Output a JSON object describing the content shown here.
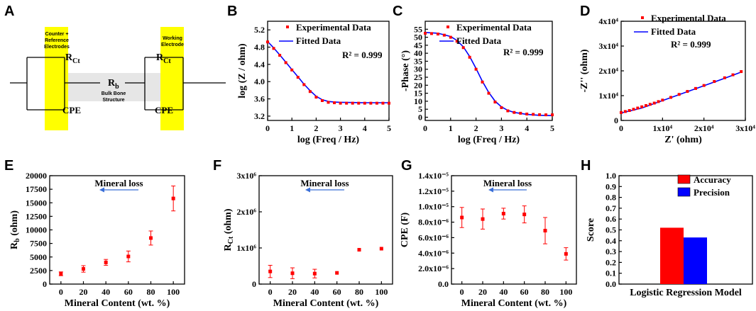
{
  "panel_letters": {
    "a": "A",
    "b": "B",
    "c": "C",
    "d": "D",
    "e": "E",
    "f": "F",
    "g": "G",
    "h": "H"
  },
  "circuit": {
    "counter_label": [
      "Counter +",
      "Reference",
      "Electrodes"
    ],
    "working_label": [
      "Working",
      "Electrode"
    ],
    "rct_left": "R",
    "rct_left_sub": "Ct",
    "rct_right": "R",
    "rct_right_sub": "Ct",
    "rb": "R",
    "rb_sub": "b",
    "bulk_label": [
      "Bulk Bone",
      "Structure"
    ],
    "cpe_left": "CPE",
    "cpe_right": "CPE",
    "electrode_color": "#ffff00",
    "bulk_color": "#e6e6e6"
  },
  "colors": {
    "experimental": "#ff0000",
    "fitted": "#0000ff",
    "accuracy": "#ff0000",
    "precision": "#0000ff",
    "arrow": "#3a6fd8"
  },
  "chart_data": [
    {
      "id": "B",
      "type": "line",
      "xlabel": "log (Freq / Hz)",
      "ylabel": "log (Z / ohm)",
      "xlim": [
        0,
        5
      ],
      "ylim": [
        3.1,
        5.4
      ],
      "xticks": [
        0,
        1,
        2,
        3,
        4,
        5
      ],
      "xtick_labels": [
        "0",
        "1",
        "2",
        "3",
        "4",
        "5"
      ],
      "yticks": [
        3.2,
        3.6,
        4.0,
        4.4,
        4.8,
        5.2
      ],
      "ytick_labels": [
        "3.2",
        "3.6",
        "4.0",
        "4.4",
        "4.8",
        "5.2"
      ],
      "legend": [
        "Experimental Data",
        "Fitted Data"
      ],
      "note": "R² = 0.999",
      "series": [
        {
          "name": "Fitted Data",
          "style": "line",
          "x": [
            0,
            0.25,
            0.5,
            0.75,
            1,
            1.25,
            1.5,
            1.75,
            2,
            2.25,
            2.5,
            2.75,
            3,
            3.5,
            4,
            4.5,
            5
          ],
          "y": [
            4.93,
            4.78,
            4.62,
            4.45,
            4.28,
            4.11,
            3.94,
            3.79,
            3.66,
            3.58,
            3.54,
            3.525,
            3.52,
            3.515,
            3.51,
            3.51,
            3.51
          ]
        },
        {
          "name": "Experimental Data",
          "style": "markers",
          "x": [
            0,
            0.25,
            0.5,
            0.75,
            1,
            1.25,
            1.5,
            1.75,
            2,
            2.25,
            2.5,
            2.75,
            3,
            3.25,
            3.5,
            3.75,
            4,
            4.25,
            4.5,
            4.75,
            5
          ],
          "y": [
            4.92,
            4.77,
            4.61,
            4.44,
            4.27,
            4.1,
            3.93,
            3.77,
            3.64,
            3.56,
            3.52,
            3.51,
            3.5,
            3.5,
            3.5,
            3.5,
            3.5,
            3.5,
            3.5,
            3.5,
            3.5
          ]
        }
      ]
    },
    {
      "id": "C",
      "type": "line",
      "xlabel": "log (Freq / Hz)",
      "ylabel": "-Phase (°)",
      "xlim": [
        0,
        5
      ],
      "ylim": [
        -2,
        60
      ],
      "xticks": [
        0,
        1,
        2,
        3,
        4,
        5
      ],
      "xtick_labels": [
        "0",
        "1",
        "2",
        "3",
        "4",
        "5"
      ],
      "yticks": [
        0,
        5,
        10,
        15,
        20,
        25,
        30,
        35,
        40,
        45,
        50,
        55
      ],
      "ytick_labels": [
        "0",
        "5",
        "10",
        "15",
        "20",
        "25",
        "30",
        "35",
        "40",
        "45",
        "50",
        "55"
      ],
      "legend": [
        "Experimental Data",
        "Fitted Data"
      ],
      "note": "R² = 0.999",
      "series": [
        {
          "name": "Fitted Data",
          "style": "line",
          "x": [
            0,
            0.5,
            1,
            1.25,
            1.5,
            1.75,
            2,
            2.25,
            2.5,
            2.75,
            3,
            3.25,
            3.5,
            4,
            4.5,
            5
          ],
          "y": [
            53,
            52.5,
            50.5,
            48,
            44,
            38,
            30.5,
            22.5,
            15.5,
            10,
            6.5,
            4.3,
            3,
            1.8,
            1.2,
            1
          ]
        },
        {
          "name": "Experimental Data",
          "style": "markers",
          "x": [
            0,
            0.25,
            0.5,
            0.75,
            1,
            1.25,
            1.5,
            1.75,
            2,
            2.25,
            2.5,
            2.75,
            3,
            3.25,
            3.5,
            3.75,
            4,
            4.25,
            4.5,
            4.75,
            5
          ],
          "y": [
            52.5,
            52.3,
            52,
            51.3,
            50,
            47.5,
            43.5,
            37.5,
            30,
            22,
            15,
            9.5,
            6,
            4,
            3,
            2.5,
            2,
            1.8,
            1.6,
            1.5,
            1.5
          ]
        }
      ]
    },
    {
      "id": "D",
      "type": "line",
      "xlabel": "Z' (ohm)",
      "ylabel": "-Z'' (ohm)",
      "xlim": [
        0,
        30000
      ],
      "ylim": [
        0,
        40000
      ],
      "xticks": [
        0,
        10000,
        20000,
        30000
      ],
      "xtick_labels": [
        "0",
        "1x10⁴",
        "2x10⁴",
        "3x10⁴"
      ],
      "yticks": [
        0,
        10000,
        20000,
        30000,
        40000
      ],
      "ytick_labels": [
        "0",
        "1x10⁴",
        "2x10⁴",
        "3x10⁴",
        "4x10⁴"
      ],
      "legend": [
        "Experimental Data",
        "Fitted Data"
      ],
      "note": "R² = 0.999",
      "series": [
        {
          "name": "Fitted Data",
          "style": "line",
          "x": [
            0,
            5000,
            10000,
            15000,
            20000,
            25000,
            29000
          ],
          "y": [
            3000,
            5000,
            8000,
            11000,
            14000,
            17000,
            19500
          ]
        },
        {
          "name": "Experimental Data",
          "style": "markers",
          "x": [
            0,
            1000,
            2000,
            3000,
            4000,
            5000,
            6000,
            7000,
            8000,
            9000,
            10000,
            12000,
            14000,
            16000,
            18000,
            20000,
            22500,
            25000,
            27000,
            29000
          ],
          "y": [
            3200,
            3600,
            4000,
            4500,
            5000,
            5500,
            6000,
            6500,
            7000,
            7600,
            8200,
            9300,
            10500,
            11700,
            12900,
            14100,
            15700,
            17200,
            18400,
            19700
          ]
        }
      ]
    },
    {
      "id": "E",
      "type": "scatter",
      "xlabel": "Mineral Content (wt. %)",
      "ylabel": "R_b (ohm)",
      "xlim": [
        -10,
        110
      ],
      "ylim": [
        0,
        20000
      ],
      "xticks": [
        0,
        20,
        40,
        60,
        80,
        100
      ],
      "xtick_labels": [
        "0",
        "20",
        "40",
        "60",
        "80",
        "100"
      ],
      "yticks": [
        0,
        2500,
        5000,
        7500,
        10000,
        12500,
        15000,
        17500,
        20000
      ],
      "ytick_labels": [
        "0",
        "2500",
        "5000",
        "7500",
        "10000",
        "12500",
        "15000",
        "17500",
        "20000"
      ],
      "annotation": "Mineral loss",
      "x": [
        0,
        20,
        40,
        60,
        80,
        100
      ],
      "y": [
        1900,
        2800,
        4000,
        5100,
        8500,
        15800
      ],
      "err": [
        350,
        600,
        550,
        1000,
        1300,
        2300
      ]
    },
    {
      "id": "F",
      "type": "scatter",
      "xlabel": "Mineral Content (wt. %)",
      "ylabel": "R_Ct (ohm)",
      "xlim": [
        -10,
        110
      ],
      "ylim": [
        0,
        3000000
      ],
      "xticks": [
        0,
        20,
        40,
        60,
        80,
        100
      ],
      "xtick_labels": [
        "0",
        "20",
        "40",
        "60",
        "80",
        "100"
      ],
      "yticks": [
        0,
        1000000,
        2000000,
        3000000
      ],
      "ytick_labels": [
        "0",
        "1x10⁶",
        "2x10⁶",
        "3x10⁶"
      ],
      "annotation": "Mineral loss",
      "x": [
        0,
        20,
        40,
        60,
        80,
        100
      ],
      "y": [
        350000,
        300000,
        290000,
        310000,
        950000,
        980000
      ],
      "err": [
        170000,
        150000,
        120000,
        0,
        0,
        0
      ]
    },
    {
      "id": "G",
      "type": "scatter",
      "xlabel": "Mineral Content (wt. %)",
      "ylabel": "CPE (F)",
      "xlim": [
        -10,
        110
      ],
      "ylim": [
        0,
        1.4e-05
      ],
      "xticks": [
        0,
        20,
        40,
        60,
        80,
        100
      ],
      "xtick_labels": [
        "0",
        "20",
        "40",
        "60",
        "80",
        "100"
      ],
      "yticks": [
        0,
        2e-06,
        4e-06,
        6e-06,
        8e-06,
        1e-05,
        1.2e-05,
        1.4e-05
      ],
      "ytick_labels": [
        "0.0",
        "2.0x10⁻⁶",
        "4.0x10⁻⁶",
        "6.0x10⁻⁶",
        "8.0x10⁻⁶",
        "1.0x10⁻⁵",
        "1.2x10⁻⁵",
        "1.4x10⁻⁵"
      ],
      "annotation": "Mineral loss",
      "x": [
        0,
        20,
        40,
        60,
        80,
        100
      ],
      "y": [
        8.6e-06,
        8.4e-06,
        9.1e-06,
        9e-06,
        6.9e-06,
        3.9e-06
      ],
      "err": [
        1.3e-06,
        1.3e-06,
        7e-07,
        1.1e-06,
        1.7e-06,
        8e-07
      ]
    },
    {
      "id": "H",
      "type": "bar",
      "xlabel": "Logistic Regression Model",
      "ylabel": "Score",
      "ylim": [
        0,
        1.0
      ],
      "yticks": [
        0,
        0.1,
        0.2,
        0.3,
        0.4,
        0.5,
        0.6,
        0.7,
        0.8,
        0.9,
        1.0
      ],
      "ytick_labels": [
        "0.0",
        "0.1",
        "0.2",
        "0.3",
        "0.4",
        "0.5",
        "0.6",
        "0.7",
        "0.8",
        "0.9",
        "1.0"
      ],
      "series": [
        {
          "name": "Accuracy",
          "values": [
            0.52
          ]
        },
        {
          "name": "Precision",
          "values": [
            0.43
          ]
        }
      ]
    }
  ]
}
